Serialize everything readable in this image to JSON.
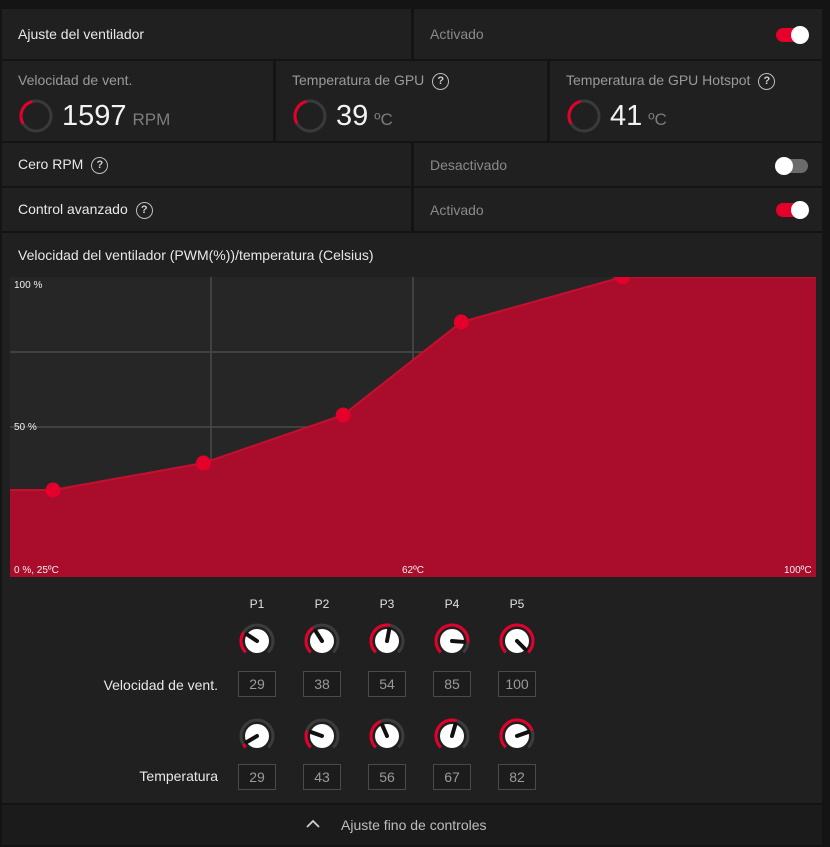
{
  "fan_tuning": {
    "label": "Ajuste del ventilador",
    "state": "Activado",
    "enabled": true
  },
  "stats": [
    {
      "title": "Velocidad de vent.",
      "value": "1597",
      "unit": "RPM",
      "has_help": false
    },
    {
      "title": "Temperatura de GPU",
      "value": "39",
      "unit": "ºC",
      "has_help": true
    },
    {
      "title": "Temperatura de GPU Hotspot",
      "value": "41",
      "unit": "ºC",
      "has_help": true
    }
  ],
  "zero_rpm": {
    "label": "Cero RPM",
    "state": "Desactivado",
    "enabled": false
  },
  "advanced_control": {
    "label": "Control avanzado",
    "state": "Activado",
    "enabled": true
  },
  "chart_title": "Velocidad del ventilador (PWM(%))/temperatura (Celsius)",
  "chart_data": {
    "type": "area",
    "x_tick_labels": [
      "0 %, 25ºC",
      "62ºC",
      "100ºC"
    ],
    "y_tick_labels": [
      "100 %",
      "50 %"
    ],
    "xlim": [
      25,
      100
    ],
    "ylim": [
      0,
      100
    ],
    "points": [
      {
        "x": 29,
        "y": 29
      },
      {
        "x": 43,
        "y": 38
      },
      {
        "x": 56,
        "y": 54
      },
      {
        "x": 67,
        "y": 85
      },
      {
        "x": 82,
        "y": 100
      }
    ],
    "fill_color": "#ae0b2b",
    "point_color": "#e4002b"
  },
  "points_header": [
    "P1",
    "P2",
    "P3",
    "P4",
    "P5"
  ],
  "fan_speed_row": {
    "label": "Velocidad de vent.",
    "values": [
      "29",
      "38",
      "54",
      "85",
      "100"
    ]
  },
  "temperature_row": {
    "label": "Temperatura",
    "values": [
      "29",
      "43",
      "56",
      "67",
      "82"
    ]
  },
  "fine_tune": {
    "label": "Ajuste fino de controles",
    "icon": "chevron-up-icon"
  },
  "colors": {
    "accent": "#e4002b",
    "panel": "#202020",
    "background": "#141414"
  }
}
